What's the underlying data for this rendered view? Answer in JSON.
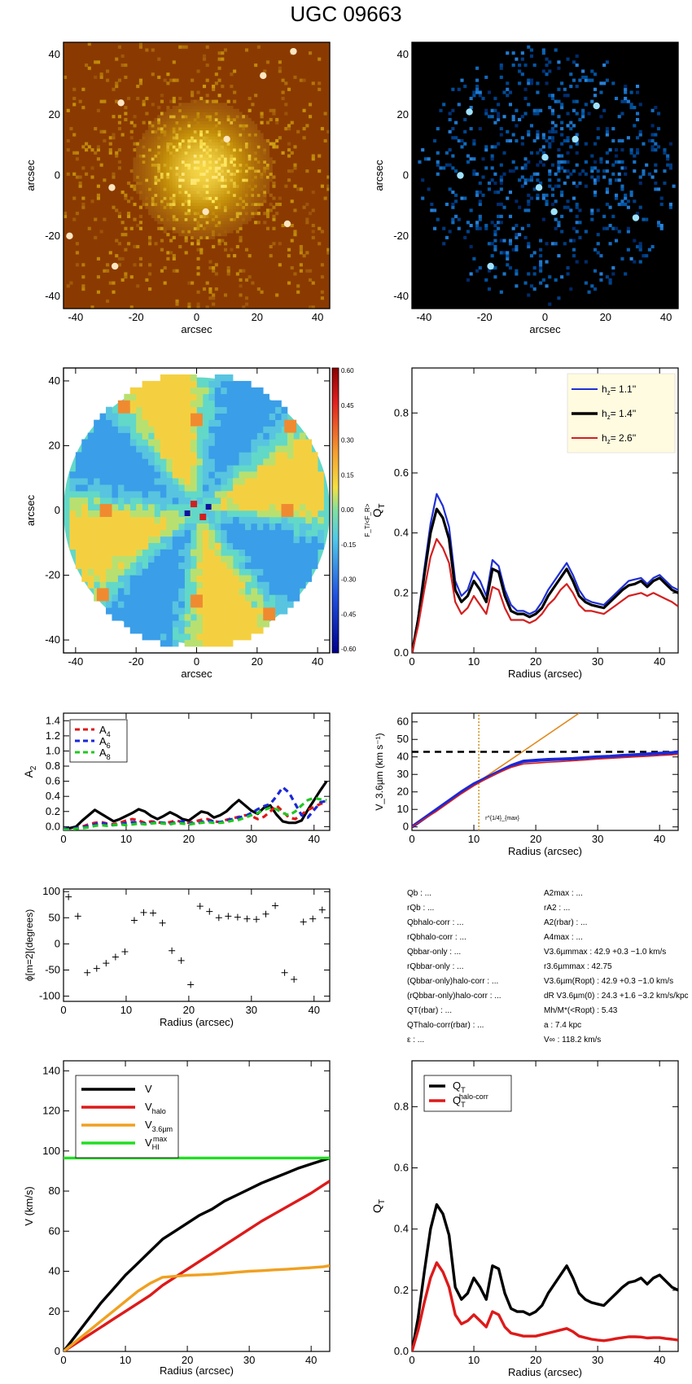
{
  "title": "UGC 09663",
  "colors": {
    "orange_bg": "#8a3a00",
    "blue_bg": "#000000",
    "hz1": "#1f2fd6",
    "hz2": "#000000",
    "hz3": "#d41f1f",
    "a4": "#e01818",
    "a6": "#1a28d8",
    "a8": "#20c820",
    "v": "#000000",
    "vhalo": "#dd1a1a",
    "v36": "#f0a020",
    "vhi": "#22dd22",
    "fit": "#e08a20"
  },
  "panels": {
    "img1": {
      "xlabel": "arcsec",
      "ylabel": "arcsec",
      "ticks": [
        -40,
        -20,
        0,
        20,
        40
      ]
    },
    "img2": {
      "xlabel": "arcsec",
      "ylabel": "arcsec",
      "ticks": [
        -40,
        -20,
        0,
        20,
        40
      ]
    },
    "ratio": {
      "xlabel": "arcsec",
      "ylabel": "arcsec",
      "cbar_label": "F_T/<F_R>",
      "cbar_ticks": [
        "0.60",
        "0.45",
        "0.30",
        "0.15",
        "0.00",
        "-0.15",
        "-0.30",
        "-0.45",
        "-0.60"
      ]
    },
    "qt": {
      "xlabel": "Radius (arcsec)",
      "ylabel": "Q_T",
      "legend": [
        "h_z= 1.1''",
        "h_z= 1.4''",
        "h_z= 2.6''"
      ]
    },
    "a2": {
      "xlabel": "",
      "ylabel": "A_2",
      "legend": [
        "A_4",
        "A_6",
        "A_8"
      ]
    },
    "v36": {
      "xlabel": "Radius (arcsec)",
      "ylabel": "V_3.6µm (km s⁻¹)",
      "annotation": "r^{1/4}_{max}"
    },
    "phi": {
      "xlabel": "Radius (arcsec)",
      "ylabel": "ϕ[m=2](degrees)"
    },
    "vel": {
      "xlabel": "Radius (arcsec)",
      "ylabel": "V (km/s)",
      "legend": [
        "V",
        "V_halo",
        "V_3.6µm",
        "V_HI^max"
      ]
    },
    "qt2": {
      "xlabel": "Radius (arcsec)",
      "ylabel": "Q_T",
      "legend": [
        "Q_T",
        "Q_T^halo-corr"
      ]
    }
  },
  "info": {
    "left": [
      "Q_b : ...",
      "r_Qb : ...",
      "Q_b^halo-corr : ...",
      "r_Qb^halo-corr : ...",
      "Q_b^bar-only : ...",
      "r_Qb^bar-only : ...",
      "(Q_b^bar-only)^halo-corr : ...",
      "(r_Qb^bar-only)^halo-corr : ...",
      "Q_T(r_bar) : ...",
      "Q_T^halo-corr(r_bar) : ...",
      "ε : ..."
    ],
    "right": [
      "A_2^max : ...",
      "r_A2 : ...",
      "A_2(r_bar) : ...",
      "A_4^max : ...",
      "V_3.6µm^max : 42.9 +0.3 −1.0 km/s",
      "r_3.6µm^max : 42.75",
      "V_3.6µm(R_opt) : 42.9 +0.3 −1.0 km/s",
      "d_R V_3.6µm(0) : 24.3 +1.6 −3.2 km/s/kpc",
      "M_h/M_*(<R_opt) : 5.43",
      "a : 7.4 kpc",
      "V_∞ : 118.2 km/s"
    ]
  },
  "chart_data": [
    {
      "type": "line",
      "id": "qt",
      "xlim": [
        0,
        43
      ],
      "ylim": [
        0,
        0.95
      ],
      "xticks": [
        0,
        10,
        20,
        30,
        40
      ],
      "yticks": [
        0.0,
        0.2,
        0.4,
        0.6,
        0.8
      ],
      "x": [
        0,
        1,
        2,
        3,
        4,
        5,
        6,
        7,
        8,
        9,
        10,
        11,
        12,
        13,
        14,
        15,
        16,
        17,
        18,
        19,
        20,
        21,
        22,
        23,
        24,
        25,
        26,
        27,
        28,
        29,
        30,
        31,
        32,
        33,
        34,
        35,
        36,
        37,
        38,
        39,
        40,
        41,
        42,
        43
      ],
      "series": [
        {
          "name": "h_z= 1.1''",
          "values": [
            0,
            0.12,
            0.28,
            0.43,
            0.53,
            0.49,
            0.42,
            0.24,
            0.19,
            0.21,
            0.27,
            0.24,
            0.19,
            0.31,
            0.29,
            0.21,
            0.16,
            0.14,
            0.14,
            0.13,
            0.14,
            0.17,
            0.21,
            0.24,
            0.27,
            0.3,
            0.26,
            0.21,
            0.18,
            0.17,
            0.165,
            0.16,
            0.18,
            0.2,
            0.22,
            0.24,
            0.245,
            0.25,
            0.23,
            0.25,
            0.26,
            0.24,
            0.22,
            0.21
          ]
        },
        {
          "name": "h_z= 1.4''",
          "values": [
            0,
            0.11,
            0.26,
            0.4,
            0.48,
            0.45,
            0.38,
            0.21,
            0.17,
            0.19,
            0.24,
            0.21,
            0.17,
            0.28,
            0.27,
            0.19,
            0.14,
            0.13,
            0.13,
            0.12,
            0.13,
            0.15,
            0.19,
            0.22,
            0.25,
            0.28,
            0.24,
            0.19,
            0.17,
            0.16,
            0.155,
            0.15,
            0.17,
            0.19,
            0.21,
            0.225,
            0.23,
            0.24,
            0.22,
            0.24,
            0.25,
            0.23,
            0.21,
            0.2
          ]
        },
        {
          "name": "h_z= 2.6''",
          "values": [
            0,
            0.09,
            0.21,
            0.32,
            0.38,
            0.35,
            0.3,
            0.17,
            0.13,
            0.15,
            0.19,
            0.16,
            0.13,
            0.22,
            0.21,
            0.15,
            0.11,
            0.11,
            0.11,
            0.1,
            0.11,
            0.13,
            0.16,
            0.18,
            0.21,
            0.23,
            0.2,
            0.16,
            0.14,
            0.14,
            0.135,
            0.13,
            0.145,
            0.16,
            0.175,
            0.19,
            0.195,
            0.2,
            0.19,
            0.2,
            0.19,
            0.18,
            0.17,
            0.155
          ]
        }
      ]
    },
    {
      "type": "line",
      "id": "a2",
      "xlim": [
        0,
        42.5
      ],
      "ylim": [
        -0.05,
        1.5
      ],
      "xticks": [
        0,
        10,
        20,
        30,
        40
      ],
      "yticks": [
        0.0,
        0.2,
        0.4,
        0.6,
        0.8,
        1.0,
        1.2,
        1.4
      ],
      "x": [
        0,
        1,
        2,
        3,
        4,
        5,
        6,
        7,
        8,
        9,
        10,
        11,
        12,
        13,
        14,
        15,
        16,
        17,
        18,
        19,
        20,
        21,
        22,
        23,
        24,
        25,
        26,
        27,
        28,
        29,
        30,
        31,
        32,
        33,
        34,
        35,
        36,
        37,
        38,
        39,
        40,
        41,
        42
      ],
      "series": [
        {
          "name": "A_2",
          "values": [
            -0.03,
            -0.02,
            0.0,
            0.08,
            0.15,
            0.22,
            0.17,
            0.12,
            0.07,
            0.1,
            0.14,
            0.18,
            0.23,
            0.2,
            0.14,
            0.1,
            0.14,
            0.19,
            0.15,
            0.1,
            0.08,
            0.14,
            0.2,
            0.18,
            0.12,
            0.15,
            0.2,
            0.28,
            0.35,
            0.28,
            0.21,
            0.17,
            0.25,
            0.28,
            0.16,
            0.07,
            0.05,
            0.05,
            0.08,
            0.22,
            0.35,
            0.48,
            0.6
          ]
        },
        {
          "name": "A_4",
          "values": [
            -0.03,
            -0.03,
            -0.02,
            0.0,
            0.03,
            0.05,
            0.06,
            0.04,
            0.03,
            0.05,
            0.08,
            0.1,
            0.08,
            0.05,
            0.07,
            0.06,
            0.04,
            0.06,
            0.08,
            0.06,
            0.05,
            0.07,
            0.09,
            0.1,
            0.07,
            0.06,
            0.09,
            0.11,
            0.13,
            0.15,
            0.14,
            0.1,
            0.13,
            0.2,
            0.28,
            0.2,
            0.12,
            0.1,
            0.16,
            0.22,
            0.26,
            0.3,
            0.32
          ]
        },
        {
          "name": "A_6",
          "values": [
            -0.03,
            -0.03,
            -0.02,
            -0.01,
            0.01,
            0.03,
            0.05,
            0.03,
            0.02,
            0.03,
            0.05,
            0.06,
            0.05,
            0.04,
            0.05,
            0.06,
            0.05,
            0.04,
            0.06,
            0.07,
            0.05,
            0.04,
            0.06,
            0.08,
            0.07,
            0.06,
            0.08,
            0.1,
            0.12,
            0.14,
            0.18,
            0.23,
            0.27,
            0.3,
            0.4,
            0.52,
            0.45,
            0.3,
            0.15,
            0.12,
            0.22,
            0.32,
            0.34
          ]
        },
        {
          "name": "A_8",
          "values": [
            -0.04,
            -0.04,
            -0.03,
            -0.02,
            -0.01,
            0.01,
            0.02,
            0.01,
            0.02,
            0.03,
            0.02,
            0.03,
            0.04,
            0.03,
            0.04,
            0.05,
            0.04,
            0.03,
            0.05,
            0.04,
            0.03,
            0.04,
            0.05,
            0.06,
            0.05,
            0.05,
            0.06,
            0.08,
            0.09,
            0.12,
            0.15,
            0.18,
            0.22,
            0.25,
            0.23,
            0.18,
            0.15,
            0.2,
            0.28,
            0.35,
            0.38,
            0.36,
            0.35
          ]
        }
      ]
    },
    {
      "type": "line",
      "id": "v36",
      "xlim": [
        0,
        43
      ],
      "ylim": [
        -2,
        65
      ],
      "xticks": [
        0,
        10,
        20,
        30,
        40
      ],
      "yticks": [
        0,
        10,
        20,
        30,
        40,
        50,
        60
      ],
      "x": [
        0,
        2,
        4,
        6,
        8,
        10,
        12,
        14,
        16,
        18,
        20,
        22,
        24,
        26,
        28,
        30,
        32,
        34,
        36,
        38,
        40,
        42,
        43
      ],
      "series": [
        {
          "name": "V_3.6µm",
          "values": [
            0,
            5,
            10,
            15,
            20,
            24.5,
            28,
            31.5,
            35,
            37.5,
            38,
            38.5,
            38.7,
            39,
            39.5,
            40,
            40.3,
            40.8,
            41.2,
            41.6,
            42,
            42.4,
            42.8
          ]
        },
        {
          "name": "V_3.6µm fit",
          "values": [
            0,
            4.5,
            9,
            14,
            19,
            23.5,
            27.5,
            31,
            34,
            36,
            36.5,
            37,
            37.3,
            37.8,
            38.3,
            38.8,
            39.2,
            39.6,
            40,
            40.4,
            40.8,
            41.2,
            41.5
          ]
        }
      ],
      "vmax": 42.9,
      "rmax": 10.8,
      "linear": {
        "x": [
          0,
          27
        ],
        "y": [
          0,
          65
        ]
      }
    },
    {
      "type": "scatter",
      "id": "phi",
      "xlim": [
        0,
        42.5
      ],
      "ylim": [
        -110,
        105
      ],
      "xticks": [
        0,
        10,
        20,
        30,
        40
      ],
      "yticks": [
        -100,
        -50,
        0,
        50,
        100
      ],
      "points": [
        [
          0.8,
          90
        ],
        [
          2.3,
          53
        ],
        [
          3.8,
          -55
        ],
        [
          5.3,
          -47
        ],
        [
          6.8,
          -37
        ],
        [
          8.3,
          -25
        ],
        [
          9.8,
          -15
        ],
        [
          11.3,
          45
        ],
        [
          12.8,
          60
        ],
        [
          14.3,
          59
        ],
        [
          15.8,
          40
        ],
        [
          17.3,
          -13
        ],
        [
          18.8,
          -32
        ],
        [
          20.3,
          -78
        ],
        [
          21.8,
          72
        ],
        [
          23.3,
          62
        ],
        [
          24.8,
          50
        ],
        [
          26.3,
          53
        ],
        [
          27.8,
          51
        ],
        [
          29.3,
          48
        ],
        [
          30.8,
          47
        ],
        [
          32.3,
          57
        ],
        [
          33.8,
          73
        ],
        [
          35.3,
          -55
        ],
        [
          36.8,
          -68
        ],
        [
          38.3,
          42
        ],
        [
          39.8,
          48
        ],
        [
          41.3,
          65
        ]
      ]
    },
    {
      "type": "line",
      "id": "vel",
      "xlim": [
        0,
        43
      ],
      "ylim": [
        0,
        145
      ],
      "xticks": [
        0,
        10,
        20,
        30,
        40
      ],
      "yticks": [
        0,
        20,
        40,
        60,
        80,
        100,
        120,
        140
      ],
      "x": [
        0,
        2,
        4,
        6,
        8,
        10,
        12,
        14,
        16,
        18,
        20,
        22,
        24,
        26,
        28,
        30,
        32,
        34,
        36,
        38,
        40,
        42,
        43
      ],
      "series": [
        {
          "name": "V",
          "values": [
            0,
            8,
            16,
            24,
            31,
            38,
            44,
            50,
            56,
            60,
            64,
            68,
            71,
            75,
            78,
            81,
            84,
            86.5,
            89,
            91.5,
            93.5,
            95.5,
            96.5
          ]
        },
        {
          "name": "V_halo",
          "values": [
            0,
            4,
            8,
            12,
            16,
            20,
            24,
            28,
            33,
            37,
            41,
            45,
            49,
            53,
            57,
            61,
            65,
            68.5,
            72,
            75.5,
            79,
            83,
            85
          ]
        },
        {
          "name": "V_3.6µm",
          "values": [
            0,
            5,
            10,
            15,
            20,
            25,
            30,
            34,
            37,
            37.5,
            38,
            38.2,
            38.5,
            39,
            39.5,
            40,
            40.3,
            40.7,
            41,
            41.4,
            41.8,
            42.3,
            42.8
          ]
        },
        {
          "name": "V_HI^max",
          "values": [
            96.5,
            96.5,
            96.5,
            96.5,
            96.5,
            96.5,
            96.5,
            96.5,
            96.5,
            96.5,
            96.5,
            96.5,
            96.5,
            96.5,
            96.5,
            96.5,
            96.5,
            96.5,
            96.5,
            96.5,
            96.5,
            96.5,
            96.5
          ]
        }
      ]
    },
    {
      "type": "line",
      "id": "qt2",
      "xlim": [
        0,
        43
      ],
      "ylim": [
        0,
        0.95
      ],
      "xticks": [
        0,
        10,
        20,
        30,
        40
      ],
      "yticks": [
        0.0,
        0.2,
        0.4,
        0.6,
        0.8
      ],
      "x": [
        0,
        1,
        2,
        3,
        4,
        5,
        6,
        7,
        8,
        9,
        10,
        11,
        12,
        13,
        14,
        15,
        16,
        17,
        18,
        19,
        20,
        21,
        22,
        23,
        24,
        25,
        26,
        27,
        28,
        29,
        30,
        31,
        32,
        33,
        34,
        35,
        36,
        37,
        38,
        39,
        40,
        41,
        42,
        43
      ],
      "series": [
        {
          "name": "Q_T",
          "values": [
            0,
            0.11,
            0.26,
            0.4,
            0.48,
            0.45,
            0.38,
            0.21,
            0.17,
            0.19,
            0.24,
            0.21,
            0.17,
            0.28,
            0.27,
            0.19,
            0.14,
            0.13,
            0.13,
            0.12,
            0.13,
            0.15,
            0.19,
            0.22,
            0.25,
            0.28,
            0.24,
            0.19,
            0.17,
            0.16,
            0.155,
            0.15,
            0.17,
            0.19,
            0.21,
            0.225,
            0.23,
            0.24,
            0.22,
            0.24,
            0.25,
            0.23,
            0.21,
            0.2
          ]
        },
        {
          "name": "Q_T^halo-corr",
          "values": [
            0,
            0.07,
            0.16,
            0.24,
            0.29,
            0.26,
            0.21,
            0.12,
            0.09,
            0.1,
            0.12,
            0.1,
            0.08,
            0.13,
            0.12,
            0.08,
            0.06,
            0.055,
            0.05,
            0.05,
            0.05,
            0.055,
            0.06,
            0.065,
            0.07,
            0.075,
            0.065,
            0.05,
            0.045,
            0.04,
            0.037,
            0.035,
            0.038,
            0.042,
            0.045,
            0.048,
            0.048,
            0.047,
            0.044,
            0.045,
            0.045,
            0.042,
            0.04,
            0.037
          ]
        }
      ]
    }
  ]
}
